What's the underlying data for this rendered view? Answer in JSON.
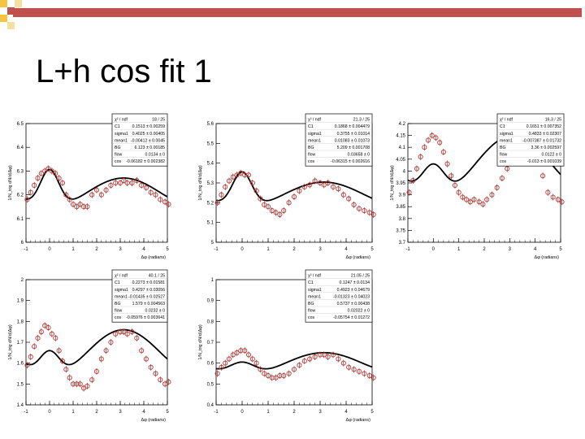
{
  "slide": {
    "title": "L+h cos fit 1",
    "colors": {
      "accent_bar": "#c0504d",
      "square_light": "#f4c542",
      "square_dark": "#c0504d"
    }
  },
  "chart_data": [
    {
      "type": "scatter",
      "ylabel": "1/N_trig dN/d(Δφ)",
      "xlabel": "Δφ (radians)",
      "xlim": [
        -1,
        5
      ],
      "ylim": [
        6,
        6.5
      ],
      "xticks": [
        "-1",
        "0",
        "1",
        "2",
        "3",
        "4",
        "5"
      ],
      "yticks": [
        "6",
        "6.1",
        "6.2",
        "6.3",
        "6.4",
        "6.5"
      ],
      "stats": [
        {
          "name": "χ² / ndf",
          "value": "18 / 25"
        },
        {
          "name": "C1",
          "value": "0.1513 ± 0.00259"
        },
        {
          "name": "sigma1",
          "value": "0.4025 ± 0.00405"
        },
        {
          "name": "mean1",
          "value": "-0.00412 ± 0.0045"
        },
        {
          "name": "BG",
          "value": "6.123 ± 0.00185"
        },
        {
          "name": "flow",
          "value": "0.0134 ± 0"
        },
        {
          "name": "cos",
          "value": "-0.06182 ± 0.002382"
        }
      ],
      "fit": {
        "bg": 6.2085,
        "h": 0.062,
        "a": 0.16,
        "w": 0.4
      },
      "points": [
        [
          -0.95,
          6.18
        ],
        [
          -0.8,
          6.21
        ],
        [
          -0.65,
          6.24
        ],
        [
          -0.5,
          6.27
        ],
        [
          -0.35,
          6.29
        ],
        [
          -0.2,
          6.3
        ],
        [
          -0.05,
          6.31
        ],
        [
          0.1,
          6.3
        ],
        [
          0.25,
          6.29
        ],
        [
          0.4,
          6.27
        ],
        [
          0.55,
          6.25
        ],
        [
          0.7,
          6.2
        ],
        [
          0.85,
          6.18
        ],
        [
          1.0,
          6.16
        ],
        [
          1.15,
          6.15
        ],
        [
          1.3,
          6.16
        ],
        [
          1.45,
          6.15
        ],
        [
          1.6,
          6.15
        ],
        [
          1.8,
          6.2
        ],
        [
          2.0,
          6.22
        ],
        [
          2.2,
          6.2
        ],
        [
          2.4,
          6.22
        ],
        [
          2.6,
          6.24
        ],
        [
          2.8,
          6.25
        ],
        [
          3.0,
          6.25
        ],
        [
          3.15,
          6.26
        ],
        [
          3.3,
          6.25
        ],
        [
          3.5,
          6.25
        ],
        [
          3.7,
          6.26
        ],
        [
          3.9,
          6.24
        ],
        [
          4.1,
          6.23
        ],
        [
          4.3,
          6.21
        ],
        [
          4.5,
          6.2
        ],
        [
          4.7,
          6.18
        ],
        [
          4.9,
          6.17
        ],
        [
          5.05,
          6.16
        ]
      ]
    },
    {
      "type": "scatter",
      "ylabel": "1/N_trig dN/d(Δφ)",
      "xlabel": "Δφ (radians)",
      "xlim": [
        -1,
        5
      ],
      "ylim": [
        5,
        5.6
      ],
      "xticks": [
        "-1",
        "0",
        "1",
        "2",
        "3",
        "4",
        "5"
      ],
      "yticks": [
        "5",
        "5.1",
        "5.2",
        "5.3",
        "5.4",
        "5.5",
        "5.6"
      ],
      "stats": [
        {
          "name": "χ² / ndf",
          "value": "21.3 / 25"
        },
        {
          "name": "C1",
          "value": "0.1868 ± 0.004479"
        },
        {
          "name": "sigma1",
          "value": "0.3755 ± 0.01014"
        },
        {
          "name": "mean1",
          "value": "0.01083 ± 0.01073"
        },
        {
          "name": "BG",
          "value": "5.209 ± 0.001708"
        },
        {
          "name": "flow",
          "value": "0.03658 ± 0"
        },
        {
          "name": "cos",
          "value": "-0.06315 ± 0.002616"
        }
      ],
      "fit": {
        "bg": 5.24,
        "h": 0.064,
        "a": 0.18,
        "w": 0.38
      },
      "points": [
        [
          -0.95,
          5.2
        ],
        [
          -0.8,
          5.24
        ],
        [
          -0.65,
          5.28
        ],
        [
          -0.5,
          5.31
        ],
        [
          -0.35,
          5.33
        ],
        [
          -0.2,
          5.34
        ],
        [
          -0.05,
          5.35
        ],
        [
          0.1,
          5.34
        ],
        [
          0.25,
          5.34
        ],
        [
          0.4,
          5.3
        ],
        [
          0.55,
          5.26
        ],
        [
          0.7,
          5.22
        ],
        [
          0.85,
          5.19
        ],
        [
          1.0,
          5.18
        ],
        [
          1.15,
          5.16
        ],
        [
          1.3,
          5.15
        ],
        [
          1.45,
          5.14
        ],
        [
          1.6,
          5.16
        ],
        [
          1.8,
          5.2
        ],
        [
          2.0,
          5.23
        ],
        [
          2.2,
          5.26
        ],
        [
          2.4,
          5.28
        ],
        [
          2.6,
          5.29
        ],
        [
          2.8,
          5.31
        ],
        [
          3.0,
          5.3
        ],
        [
          3.15,
          5.29
        ],
        [
          3.3,
          5.3
        ],
        [
          3.5,
          5.28
        ],
        [
          3.7,
          5.27
        ],
        [
          3.9,
          5.24
        ],
        [
          4.1,
          5.22
        ],
        [
          4.3,
          5.19
        ],
        [
          4.5,
          5.17
        ],
        [
          4.7,
          5.16
        ],
        [
          4.9,
          5.15
        ],
        [
          5.05,
          5.14
        ]
      ]
    },
    {
      "type": "scatter",
      "ylabel": "1/N_trig dN/d(Δφ)",
      "xlabel": "Δφ (radians)",
      "xlim": [
        -1,
        5
      ],
      "ylim": [
        3.7,
        4.2
      ],
      "xticks": [
        "-1",
        "0",
        "1",
        "2",
        "3",
        "4",
        "5"
      ],
      "yticks": [
        "3.7",
        "3.75",
        "3.8",
        "3.85",
        "3.9",
        "3.95",
        "4",
        "4.05",
        "4.1",
        "4.15",
        "4.2"
      ],
      "stats": [
        {
          "name": "χ² / ndf",
          "value": "16.3 / 25"
        },
        {
          "name": "C1",
          "value": "0.1651 ± 0.007352"
        },
        {
          "name": "sigma1",
          "value": "0.4833 ± 0.02307"
        },
        {
          "name": "mean1",
          "value": "-0.007387 ± 0.01732"
        },
        {
          "name": "BG",
          "value": "3.36 ± 0.002597"
        },
        {
          "name": "flow",
          "value": "0.0122 ± 0"
        },
        {
          "name": "cos",
          "value": "-0.013 ± 0.001039"
        }
      ],
      "fit": {
        "bg": 4.02,
        "h": 0.13,
        "a": 0.14,
        "w": 0.45
      },
      "points": [
        [
          -0.95,
          3.91
        ],
        [
          -0.8,
          3.96
        ],
        [
          -0.65,
          4.01
        ],
        [
          -0.5,
          4.06
        ],
        [
          -0.35,
          4.1
        ],
        [
          -0.2,
          4.13
        ],
        [
          -0.05,
          4.15
        ],
        [
          0.1,
          4.14
        ],
        [
          0.25,
          4.12
        ],
        [
          0.4,
          4.08
        ],
        [
          0.55,
          4.03
        ],
        [
          0.7,
          3.98
        ],
        [
          0.85,
          3.94
        ],
        [
          1.0,
          3.91
        ],
        [
          1.15,
          3.89
        ],
        [
          1.3,
          3.88
        ],
        [
          1.45,
          3.87
        ],
        [
          1.6,
          3.88
        ],
        [
          1.8,
          3.87
        ],
        [
          1.95,
          3.86
        ],
        [
          2.1,
          3.88
        ],
        [
          2.3,
          3.9
        ],
        [
          2.5,
          3.93
        ],
        [
          2.7,
          3.97
        ],
        [
          2.9,
          4.01
        ],
        [
          3.1,
          4.05
        ],
        [
          3.3,
          4.08
        ],
        [
          3.5,
          4.11
        ],
        [
          3.7,
          4.12
        ],
        [
          3.9,
          4.1
        ],
        [
          4.1,
          4.05
        ],
        [
          4.3,
          3.98
        ],
        [
          4.5,
          3.91
        ],
        [
          4.7,
          3.89
        ],
        [
          4.9,
          3.88
        ],
        [
          5.05,
          3.87
        ]
      ]
    },
    {
      "type": "scatter",
      "ylabel": "1/N_trig dN/d(Δφ)",
      "xlabel": "Δφ (radians)",
      "xlim": [
        -1,
        5
      ],
      "ylim": [
        1.4,
        2
      ],
      "xticks": [
        "-1",
        "0",
        "1",
        "2",
        "3",
        "4",
        "5"
      ],
      "yticks": [
        "1.4",
        "1.5",
        "1.6",
        "1.7",
        "1.8",
        "1.9",
        "2"
      ],
      "stats": [
        {
          "name": "χ² / ndf",
          "value": "40.1 / 25"
        },
        {
          "name": "C1",
          "value": "0.2273 ± 0.01581"
        },
        {
          "name": "sigma1",
          "value": "0.4297 ± 0.03056"
        },
        {
          "name": "mean1",
          "value": "-0.01435 ± 0.02527"
        },
        {
          "name": "BG",
          "value": "1.579 ± 0.004563"
        },
        {
          "name": "flow",
          "value": "0.0232 ± 0"
        },
        {
          "name": "cos",
          "value": "-0.05976 ± 0.003641"
        }
      ],
      "fit": {
        "bg": 1.65,
        "h": 0.11,
        "a": 0.12,
        "w": 0.42
      },
      "points": [
        [
          -0.95,
          1.59
        ],
        [
          -0.8,
          1.63
        ],
        [
          -0.65,
          1.68
        ],
        [
          -0.5,
          1.72
        ],
        [
          -0.35,
          1.75
        ],
        [
          -0.2,
          1.78
        ],
        [
          -0.05,
          1.77
        ],
        [
          0.1,
          1.74
        ],
        [
          0.25,
          1.72
        ],
        [
          0.4,
          1.66
        ],
        [
          0.55,
          1.61
        ],
        [
          0.7,
          1.57
        ],
        [
          0.85,
          1.53
        ],
        [
          1.0,
          1.5
        ],
        [
          1.15,
          1.5
        ],
        [
          1.3,
          1.5
        ],
        [
          1.45,
          1.48
        ],
        [
          1.6,
          1.49
        ],
        [
          1.8,
          1.52
        ],
        [
          2.0,
          1.56
        ],
        [
          2.2,
          1.62
        ],
        [
          2.4,
          1.66
        ],
        [
          2.6,
          1.7
        ],
        [
          2.8,
          1.74
        ],
        [
          3.0,
          1.75
        ],
        [
          3.15,
          1.75
        ],
        [
          3.3,
          1.74
        ],
        [
          3.5,
          1.75
        ],
        [
          3.7,
          1.72
        ],
        [
          3.9,
          1.66
        ],
        [
          4.1,
          1.62
        ],
        [
          4.3,
          1.58
        ],
        [
          4.5,
          1.55
        ],
        [
          4.7,
          1.52
        ],
        [
          4.9,
          1.5
        ],
        [
          5.05,
          1.51
        ]
      ]
    },
    {
      "type": "scatter",
      "ylabel": "1/N_trig dN/d(Δφ)",
      "xlabel": "Δφ (radians)",
      "xlim": [
        -1,
        5
      ],
      "ylim": [
        0.4,
        1
      ],
      "xticks": [
        "-1",
        "0",
        "1",
        "2",
        "3",
        "4",
        "5"
      ],
      "yticks": [
        "0.4",
        "0.5",
        "0.6",
        "0.7",
        "0.8",
        "0.9",
        "1"
      ],
      "stats": [
        {
          "name": "χ² / ndf",
          "value": "21.05 / 25"
        },
        {
          "name": "C1",
          "value": "0.1247 ± 0.0134"
        },
        {
          "name": "sigma1",
          "value": "0.4923 ± 0.04679"
        },
        {
          "name": "mean1",
          "value": "-0.01323 ± 0.04023"
        },
        {
          "name": "BG",
          "value": "0.5737 ± 0.00438"
        },
        {
          "name": "flow",
          "value": "0.02022 ± 0"
        },
        {
          "name": "cos",
          "value": "-0.05754 ± 0.01272"
        }
      ],
      "fit": {
        "bg": 0.595,
        "h": 0.055,
        "a": 0.065,
        "w": 0.49
      },
      "points": [
        [
          -0.95,
          0.55
        ],
        [
          -0.8,
          0.58
        ],
        [
          -0.65,
          0.6
        ],
        [
          -0.5,
          0.62
        ],
        [
          -0.35,
          0.64
        ],
        [
          -0.2,
          0.65
        ],
        [
          -0.05,
          0.66
        ],
        [
          0.1,
          0.66
        ],
        [
          0.25,
          0.64
        ],
        [
          0.4,
          0.62
        ],
        [
          0.55,
          0.6
        ],
        [
          0.7,
          0.57
        ],
        [
          0.85,
          0.55
        ],
        [
          1.0,
          0.54
        ],
        [
          1.15,
          0.53
        ],
        [
          1.3,
          0.53
        ],
        [
          1.45,
          0.54
        ],
        [
          1.6,
          0.54
        ],
        [
          1.8,
          0.55
        ],
        [
          2.0,
          0.57
        ],
        [
          2.2,
          0.59
        ],
        [
          2.4,
          0.61
        ],
        [
          2.6,
          0.62
        ],
        [
          2.8,
          0.63
        ],
        [
          3.0,
          0.64
        ],
        [
          3.15,
          0.64
        ],
        [
          3.3,
          0.63
        ],
        [
          3.5,
          0.64
        ],
        [
          3.7,
          0.62
        ],
        [
          3.9,
          0.6
        ],
        [
          4.1,
          0.58
        ],
        [
          4.3,
          0.57
        ],
        [
          4.5,
          0.56
        ],
        [
          4.7,
          0.55
        ],
        [
          4.9,
          0.54
        ],
        [
          5.05,
          0.53
        ]
      ]
    }
  ]
}
